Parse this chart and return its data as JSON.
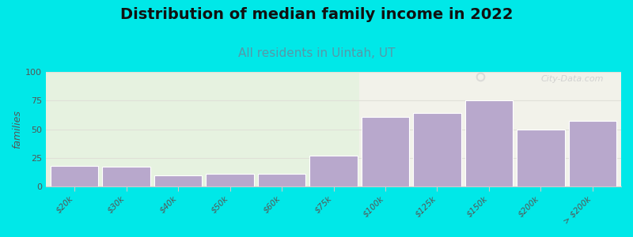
{
  "title": "Distribution of median family income in 2022",
  "subtitle": "All residents in Uintah, UT",
  "ylabel": "families",
  "categories": [
    "$20k",
    "$30k",
    "$40k",
    "$50k",
    "$60k",
    "$75k",
    "$100k",
    "$125k",
    "$150k",
    "$200k",
    "> $200k"
  ],
  "values": [
    18,
    17,
    10,
    11,
    11,
    27,
    61,
    64,
    75,
    50,
    57
  ],
  "bar_color": "#b8a8cc",
  "bar_edge_color": "#a898bc",
  "ylim": [
    0,
    100
  ],
  "yticks": [
    0,
    25,
    50,
    75,
    100
  ],
  "bg_color": "#00e8e8",
  "plot_bg_left_color": "#e6f2e0",
  "plot_bg_right_color": "#f2f2ea",
  "title_fontsize": 14,
  "subtitle_fontsize": 11,
  "subtitle_color": "#5599aa",
  "watermark": "City-Data.com",
  "green_bar_count": 6,
  "grid_color": "#e0e0d8",
  "spine_color": "#cccccc"
}
